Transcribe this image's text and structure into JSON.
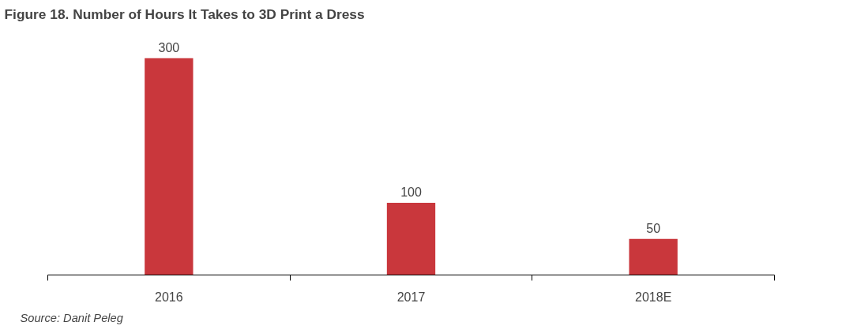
{
  "chart_data": {
    "type": "bar",
    "title": "Figure 18. Number of Hours It Takes to 3D Print a Dress",
    "categories": [
      "2016",
      "2017",
      "2018E"
    ],
    "values": [
      300,
      100,
      50
    ],
    "color": "#c9373c",
    "data_labels": true,
    "tick_labels": "x",
    "grid": false,
    "annotations": [
      "Source: Danit Peleg"
    ]
  }
}
